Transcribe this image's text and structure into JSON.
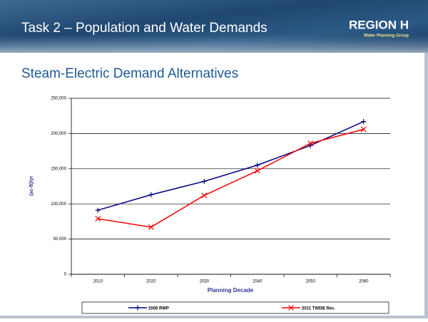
{
  "header": {
    "title": "Task 2 – Population and Water Demands",
    "logo": {
      "name": "REGION H",
      "tagline": "Water Planning Group"
    }
  },
  "chart_data": {
    "type": "line",
    "title": "Steam-Electric Demand Alternatives",
    "x_label": "Planning Decade",
    "y_label": "(ac-ft)/yr",
    "categories": [
      "2010",
      "2020",
      "2030",
      "2040",
      "2050",
      "2060"
    ],
    "series": [
      {
        "name": "2006 RWP",
        "color": "#000080",
        "marker": "plus",
        "values": [
          91000,
          113000,
          132000,
          155000,
          183000,
          217000
        ]
      },
      {
        "name": "2011 TWDB Rec.",
        "color": "#ff0000",
        "marker": "x",
        "values": [
          79000,
          67000,
          112000,
          147000,
          186000,
          206000
        ]
      }
    ],
    "ylim": [
      0,
      250000
    ],
    "yticks": [
      0,
      {
        "value": 50000,
        "label": "50,000"
      },
      {
        "value": 100000,
        "label": "100,000"
      },
      {
        "value": 150000,
        "label": "150,000"
      },
      {
        "value": 200000,
        "label": "200,000"
      },
      {
        "value": 250000,
        "label": "250,000"
      }
    ],
    "grid": true,
    "legend": "bottom"
  }
}
